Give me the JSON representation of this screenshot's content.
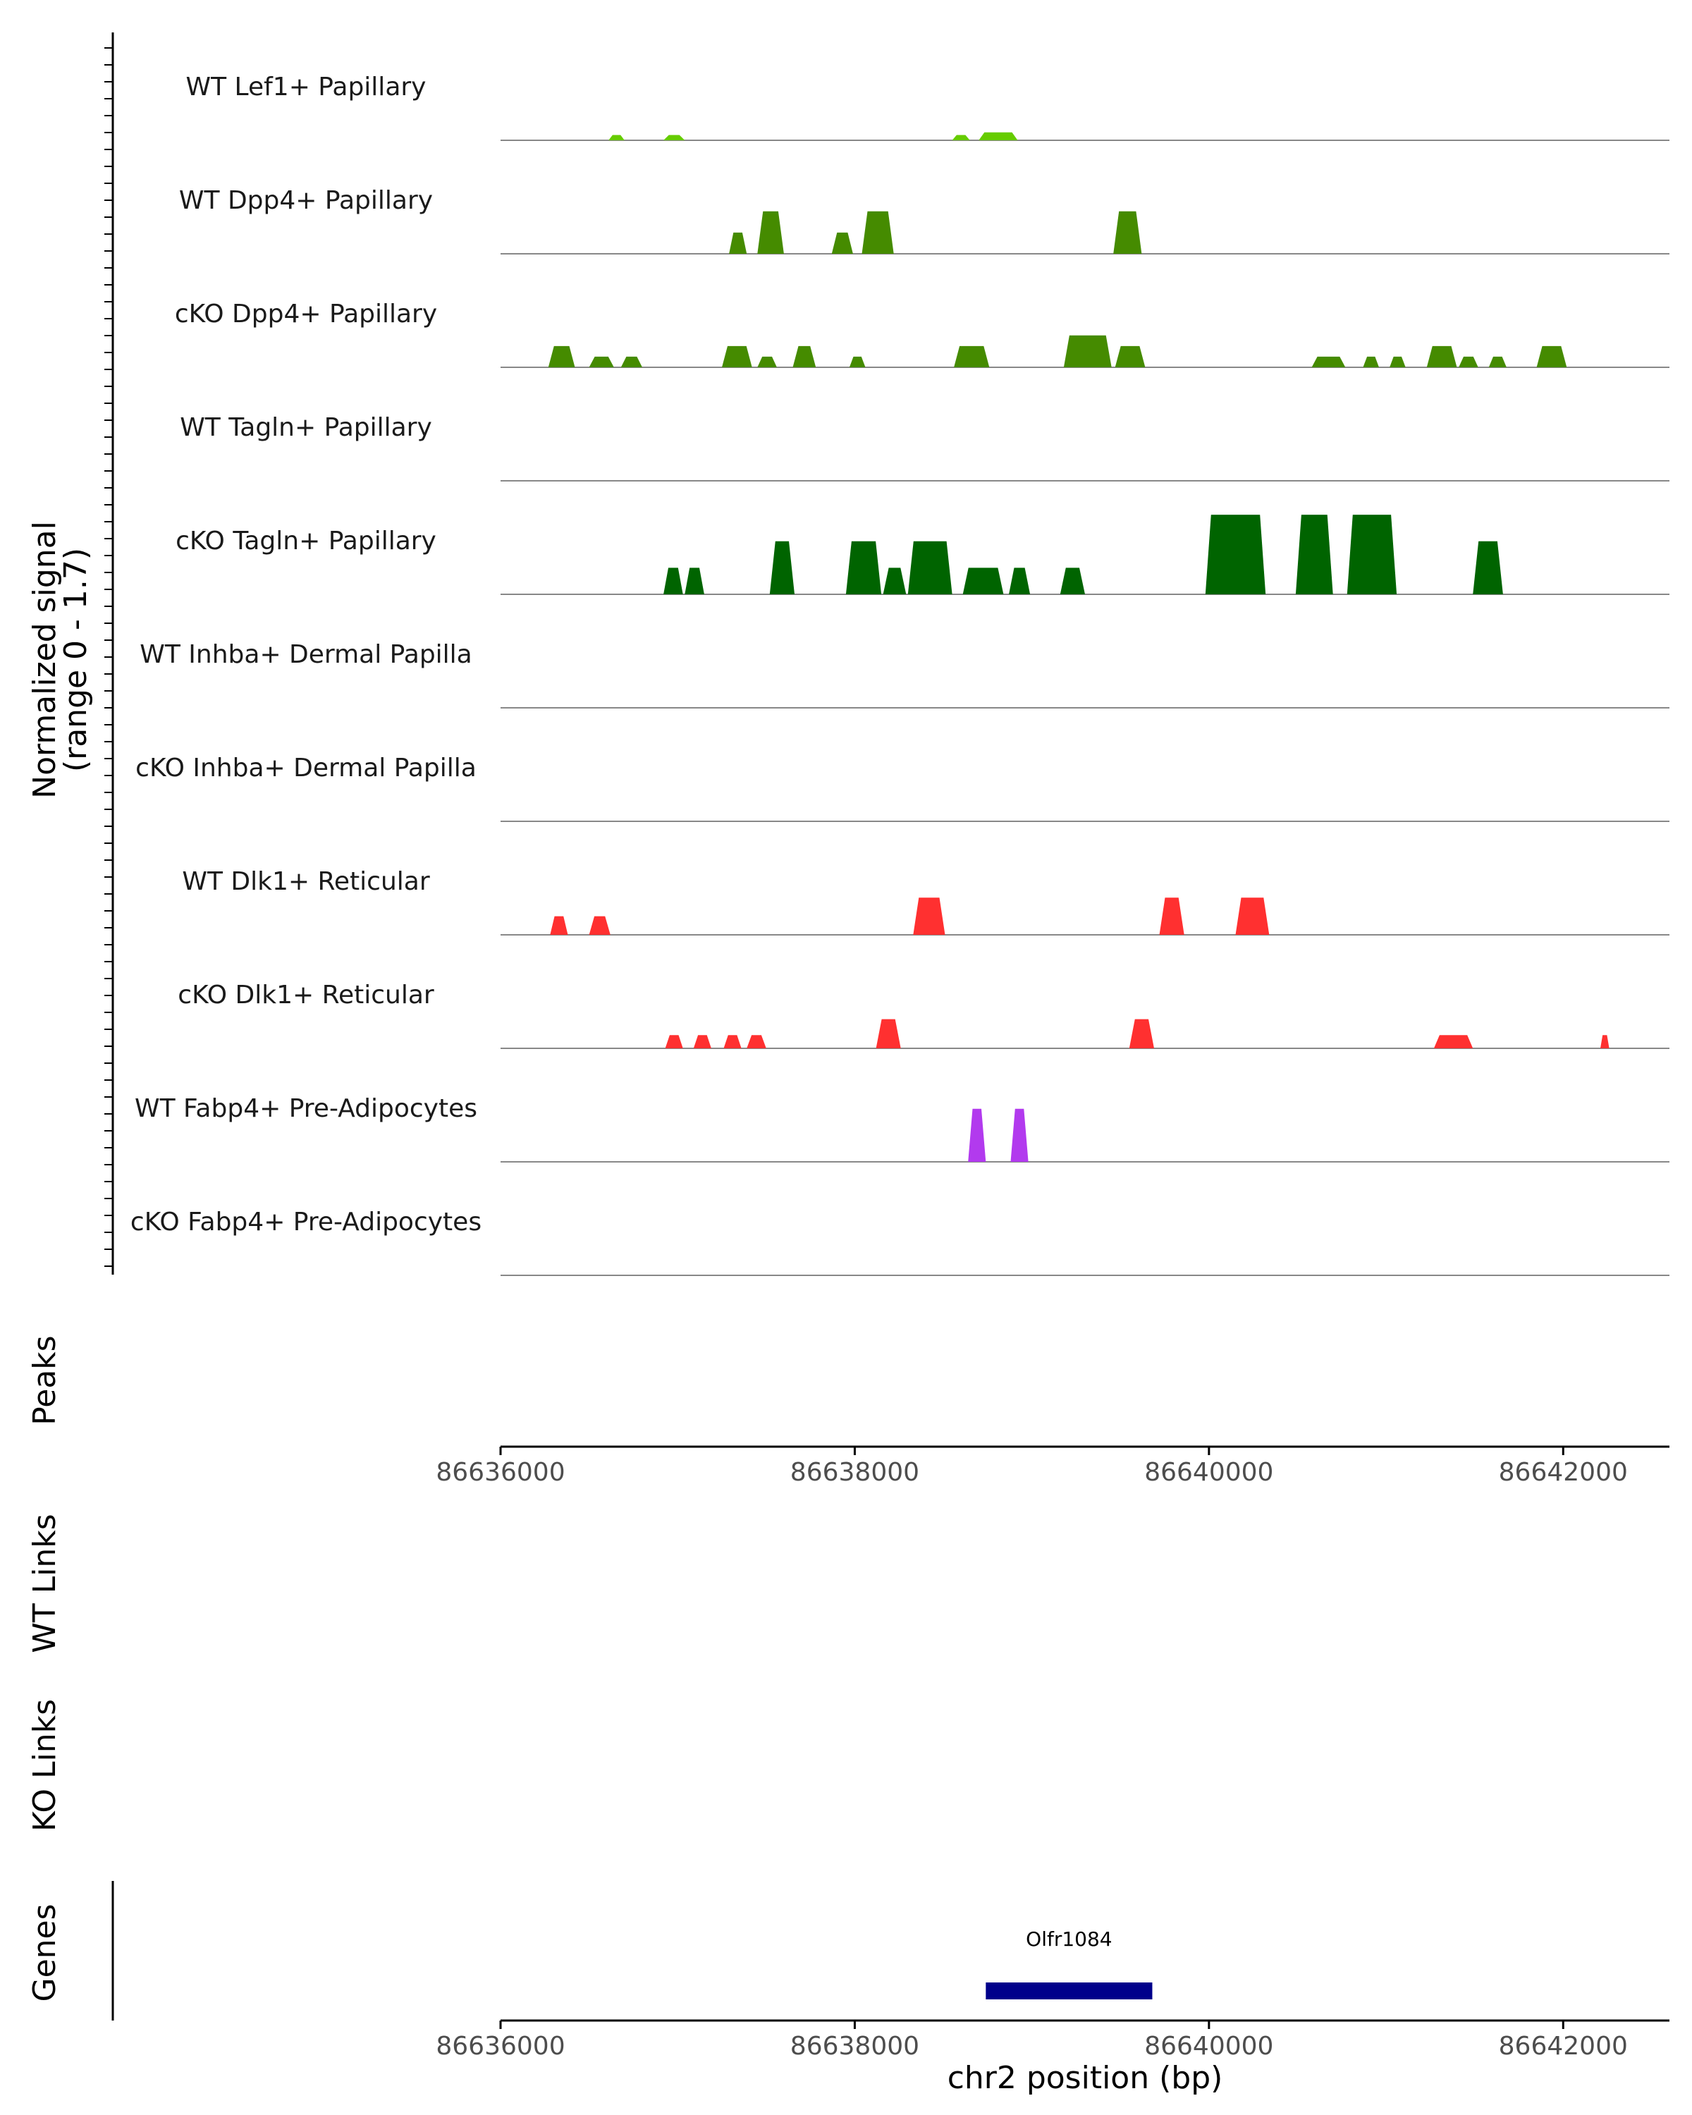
{
  "chart_data": {
    "type": "area",
    "region": {
      "chrom": "chr2",
      "start": 86636000,
      "end": 86642600
    },
    "y_axis_title_line1": "Normalized signal",
    "y_axis_title_line2": "(range 0 - 1.7)",
    "ylim": [
      0,
      1.7
    ],
    "xlabel": "chr2 position (bp)",
    "x_ticks": [
      86636000,
      86638000,
      86640000,
      86642000
    ],
    "x_tick_labels": [
      "86636000",
      "86638000",
      "86640000",
      "86642000"
    ],
    "tracks": [
      {
        "name": "WT Lef1+ Papillary",
        "color": "#66cc00",
        "peaks": [
          [
            86636610,
            86636700,
            0.1
          ],
          [
            86636920,
            86637040,
            0.1
          ],
          [
            86638550,
            86638650,
            0.1
          ],
          [
            86638700,
            86638920,
            0.15
          ]
        ]
      },
      {
        "name": "WT Dpp4+ Papillary",
        "color": "#458b00",
        "peaks": [
          [
            86637290,
            86637390,
            0.4
          ],
          [
            86637450,
            86637600,
            0.8
          ],
          [
            86637870,
            86637990,
            0.4
          ],
          [
            86638040,
            86638220,
            0.8
          ],
          [
            86639460,
            86639620,
            0.8
          ]
        ]
      },
      {
        "name": "cKO Dpp4+ Papillary",
        "color": "#458b00",
        "peaks": [
          [
            86636270,
            86636420,
            0.4
          ],
          [
            86636500,
            86636640,
            0.2
          ],
          [
            86636680,
            86636800,
            0.2
          ],
          [
            86637250,
            86637420,
            0.4
          ],
          [
            86637450,
            86637560,
            0.2
          ],
          [
            86637650,
            86637780,
            0.4
          ],
          [
            86637970,
            86638060,
            0.2
          ],
          [
            86638560,
            86638760,
            0.4
          ],
          [
            86639180,
            86639450,
            0.6
          ],
          [
            86639470,
            86639640,
            0.4
          ],
          [
            86640580,
            86640770,
            0.2
          ],
          [
            86640870,
            86640960,
            0.2
          ],
          [
            86641020,
            86641110,
            0.2
          ],
          [
            86641230,
            86641400,
            0.4
          ],
          [
            86641410,
            86641520,
            0.2
          ],
          [
            86641580,
            86641680,
            0.2
          ],
          [
            86641850,
            86642020,
            0.4
          ]
        ]
      },
      {
        "name": "WT Tagln+ Papillary",
        "color": "#006400",
        "peaks": []
      },
      {
        "name": "cKO Tagln+ Papillary",
        "color": "#006400",
        "peaks": [
          [
            86636920,
            86637030,
            0.5
          ],
          [
            86637040,
            86637150,
            0.5
          ],
          [
            86637520,
            86637660,
            1.0
          ],
          [
            86637950,
            86638150,
            1.0
          ],
          [
            86638160,
            86638290,
            0.5
          ],
          [
            86638300,
            86638550,
            1.0
          ],
          [
            86638610,
            86638840,
            0.5
          ],
          [
            86638870,
            86638990,
            0.5
          ],
          [
            86639160,
            86639300,
            0.5
          ],
          [
            86639980,
            86640320,
            1.5
          ],
          [
            86640490,
            86640700,
            1.5
          ],
          [
            86640780,
            86641060,
            1.5
          ],
          [
            86641490,
            86641660,
            1.0
          ]
        ]
      },
      {
        "name": "WT Inhba+ Dermal Papilla",
        "color": "#000000",
        "peaks": []
      },
      {
        "name": "cKO Inhba+ Dermal Papilla",
        "color": "#000000",
        "peaks": []
      },
      {
        "name": "WT Dlk1+ Reticular",
        "color": "#ff3030",
        "peaks": [
          [
            86636280,
            86636380,
            0.35
          ],
          [
            86636500,
            86636620,
            0.35
          ],
          [
            86638330,
            86638510,
            0.7
          ],
          [
            86639720,
            86639860,
            0.7
          ],
          [
            86640150,
            86640340,
            0.7
          ]
        ]
      },
      {
        "name": "cKO Dlk1+ Reticular",
        "color": "#ff3030",
        "peaks": [
          [
            86636930,
            86637030,
            0.25
          ],
          [
            86637090,
            86637190,
            0.25
          ],
          [
            86637260,
            86637360,
            0.25
          ],
          [
            86637390,
            86637500,
            0.25
          ],
          [
            86638120,
            86638260,
            0.55
          ],
          [
            86639550,
            86639690,
            0.55
          ],
          [
            86641270,
            86641490,
            0.25
          ],
          [
            86642210,
            86642260,
            0.25
          ]
        ]
      },
      {
        "name": "WT Fabp4+ Pre-Adipocytes",
        "color": "#b23aee",
        "peaks": [
          [
            86638640,
            86638740,
            1.0
          ],
          [
            86638880,
            86638980,
            1.0
          ]
        ]
      },
      {
        "name": "cKO Fabp4+ Pre-Adipocytes",
        "color": "#b23aee",
        "peaks": []
      }
    ],
    "panels": [
      "Peaks",
      "WT Links",
      "KO Links",
      "Genes"
    ],
    "genes": [
      {
        "name": "Olfr1084",
        "start": 86638740,
        "end": 86639680,
        "color": "#00008b"
      }
    ]
  }
}
